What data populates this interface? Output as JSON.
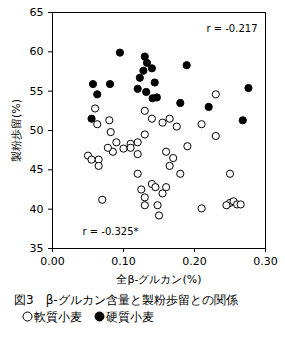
{
  "chart_data": {
    "type": "scatter",
    "title": "図3　β-グルカン含量と製粉歩留との関係",
    "x_label": "全β-グルカン(%)",
    "y_label": "製粉歩留(%)",
    "xlim": [
      0,
      0.3
    ],
    "xticks": [
      0,
      0.1,
      0.2,
      0.3
    ],
    "ylim": [
      35,
      65
    ],
    "yticks": [
      35,
      40,
      45,
      50,
      55,
      60,
      65
    ],
    "annotations": [
      "r = -0.217",
      "r = -0.325*"
    ],
    "legend": "bottom",
    "series": [
      {
        "name": "軟質小麦",
        "marker": "open",
        "color": "#000000",
        "x": [
          0.06,
          0.063,
          0.08,
          0.082,
          0.09,
          0.11,
          0.1,
          0.085,
          0.078,
          0.065,
          0.05,
          0.055,
          0.065,
          0.07,
          0.12,
          0.125,
          0.13,
          0.13,
          0.14,
          0.145,
          0.15,
          0.148,
          0.16,
          0.165,
          0.16,
          0.17,
          0.13,
          0.13,
          0.14,
          0.155,
          0.165,
          0.175,
          0.18,
          0.19,
          0.21,
          0.21,
          0.23,
          0.23,
          0.25,
          0.25,
          0.255,
          0.26,
          0.265,
          0.245,
          0.11,
          0.12,
          0.12,
          0.155
        ],
        "values": [
          52.8,
          50.8,
          51.3,
          49.8,
          48.5,
          48.3,
          47.7,
          47.3,
          47.8,
          46.3,
          46.8,
          46.3,
          45.5,
          41.2,
          44.5,
          42.5,
          41.5,
          40.5,
          43.2,
          42.8,
          39.2,
          40.5,
          42.8,
          45.5,
          47.3,
          46.5,
          49.5,
          52.5,
          51.5,
          51.0,
          51.5,
          50.5,
          44.5,
          48.0,
          40.1,
          50.8,
          49.3,
          54.6,
          44.5,
          40.8,
          41.0,
          40.6,
          40.6,
          40.5,
          47.8,
          48.5,
          47.0,
          42.0
        ]
      },
      {
        "name": "硬質小麦",
        "marker": "filled",
        "color": "#000000",
        "x": [
          0.095,
          0.13,
          0.133,
          0.128,
          0.14,
          0.123,
          0.12,
          0.144,
          0.147,
          0.141,
          0.132,
          0.189,
          0.081,
          0.057,
          0.063,
          0.055,
          0.22,
          0.276,
          0.268,
          0.18
        ],
        "values": [
          59.9,
          59.4,
          58.6,
          57.6,
          57.9,
          56.7,
          55.3,
          56.1,
          54.2,
          54.1,
          54.9,
          58.3,
          55.9,
          55.9,
          54.6,
          51.5,
          53.0,
          55.4,
          51.3,
          53.5
        ]
      }
    ]
  }
}
